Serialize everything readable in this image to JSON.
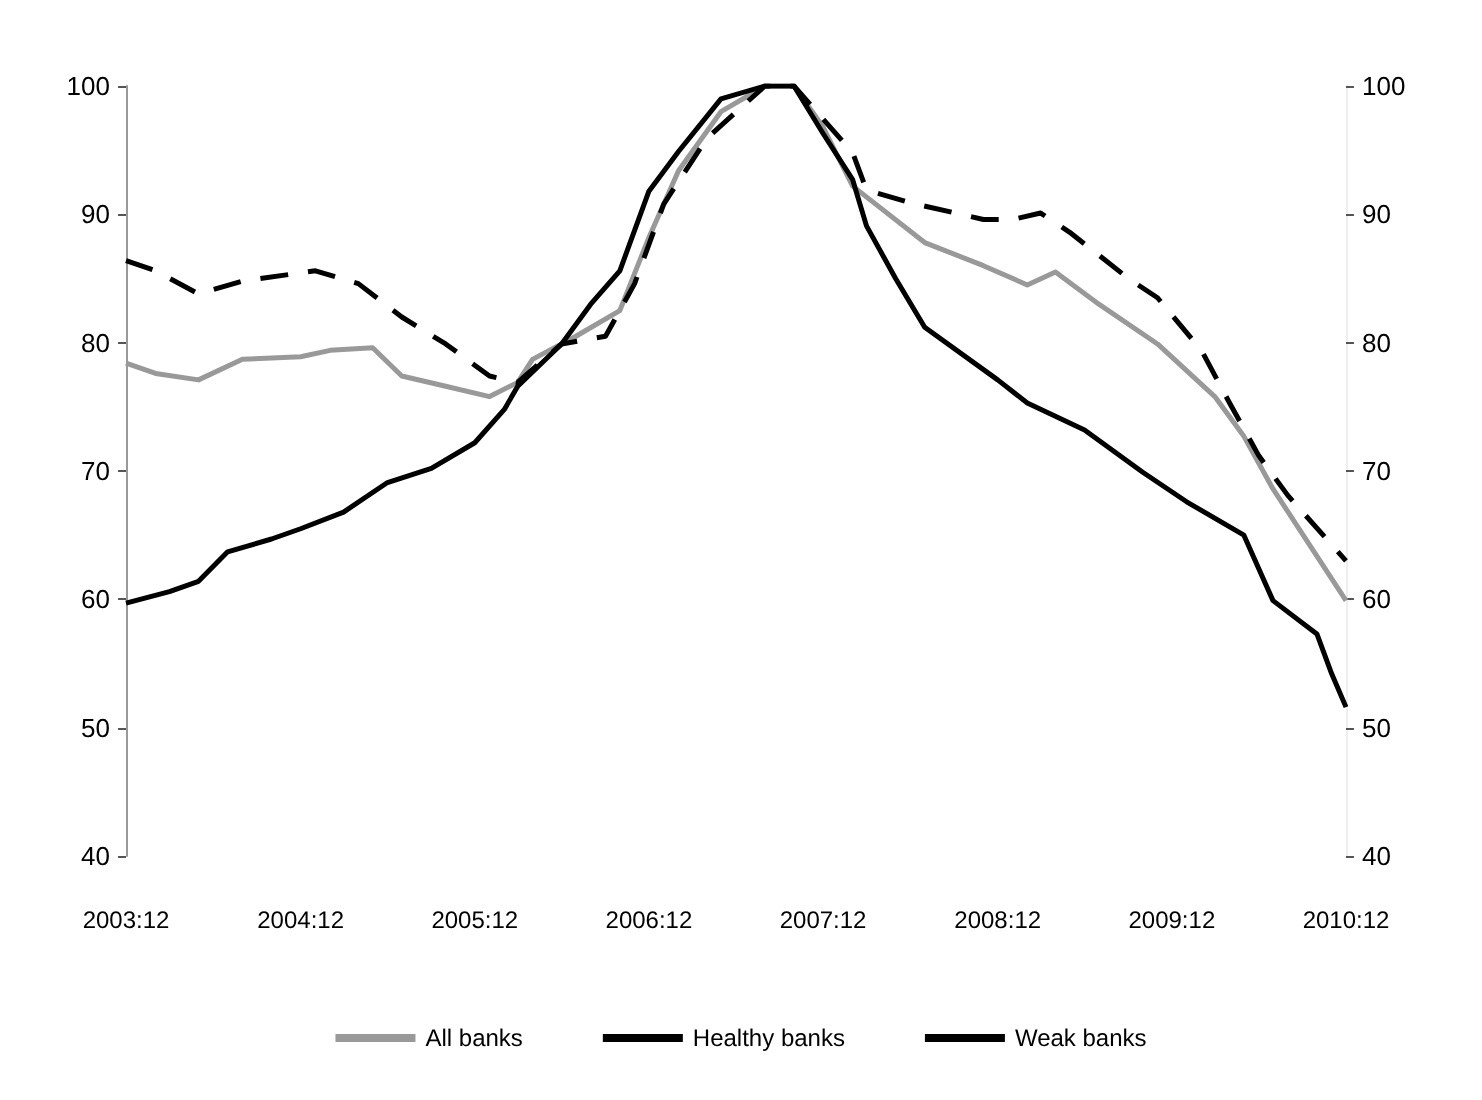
{
  "chart_data": {
    "type": "line",
    "legend": "bottom",
    "grid": false,
    "marker": "none",
    "xlim": [
      "2003-12",
      "2010-12"
    ],
    "xticks": [
      {
        "value": "2003-12",
        "label": "2003:12"
      },
      {
        "value": "2004-12",
        "label": "2004:12"
      },
      {
        "value": "2005-12",
        "label": "2005:12"
      },
      {
        "value": "2006-12",
        "label": "2006:12"
      },
      {
        "value": "2007-12",
        "label": "2007:12"
      },
      {
        "value": "2008-12",
        "label": "2008:12"
      },
      {
        "value": "2009-12",
        "label": "2009:12"
      },
      {
        "value": "2010-12",
        "label": "2010:12"
      }
    ],
    "ylim": [
      40,
      100
    ],
    "yticks": [
      40,
      50,
      60,
      70,
      80,
      90,
      100
    ],
    "y2lim": [
      40,
      100
    ],
    "y2ticks": [
      40,
      50,
      60,
      70,
      80,
      90,
      100
    ],
    "series": [
      {
        "name": "All banks",
        "color": "#999999",
        "line_style": "solid",
        "x": [
          "2003-12",
          "2004-02",
          "2004-05",
          "2004-08",
          "2004-12",
          "2005-02",
          "2005-05",
          "2005-07",
          "2005-10",
          "2006-01",
          "2006-03",
          "2006-04",
          "2006-07",
          "2006-10",
          "2006-12",
          "2007-02",
          "2007-05",
          "2007-08",
          "2007-10",
          "2007-12",
          "2008-02",
          "2008-07",
          "2008-11",
          "2009-02",
          "2009-04",
          "2009-07",
          "2009-11",
          "2010-03",
          "2010-05",
          "2010-07",
          "2010-12"
        ],
        "values": [
          78.4,
          77.6,
          77.1,
          78.7,
          78.9,
          79.4,
          79.6,
          77.4,
          76.6,
          75.8,
          76.9,
          78.7,
          80.5,
          82.5,
          88.2,
          93.4,
          98,
          100,
          100,
          96.8,
          92.2,
          87.8,
          86,
          84.5,
          85.5,
          83,
          79.9,
          75.8,
          72.7,
          68.6,
          59.9
        ]
      },
      {
        "name": "Healthy banks",
        "color": "#000000",
        "line_style": "dashed",
        "x": [
          "2003-12",
          "2004-02",
          "2004-05",
          "2004-08",
          "2005-01",
          "2005-04",
          "2005-07",
          "2005-10",
          "2006-01",
          "2006-03",
          "2006-06",
          "2006-09",
          "2006-11",
          "2007-01",
          "2007-04",
          "2007-08",
          "2007-10",
          "2008-02",
          "2008-03",
          "2008-06",
          "2008-11",
          "2009-01",
          "2009-03",
          "2009-05",
          "2009-09",
          "2009-11",
          "2010-02",
          "2010-04",
          "2010-06",
          "2010-08",
          "2010-12"
        ],
        "values": [
          86.4,
          85.6,
          83.8,
          84.8,
          85.6,
          84.6,
          82,
          79.9,
          77.4,
          76.9,
          79.9,
          80.5,
          84.6,
          90.8,
          95.9,
          100,
          100,
          94.8,
          91.9,
          90.9,
          89.6,
          89.6,
          90.1,
          88.6,
          85,
          83.5,
          79.4,
          75.3,
          71.2,
          68.1,
          63
        ]
      },
      {
        "name": "Weak banks",
        "color": "#000000",
        "line_style": "solid",
        "x": [
          "2003-12",
          "2004-03",
          "2004-05",
          "2004-07",
          "2004-10",
          "2004-12",
          "2005-03",
          "2005-06",
          "2005-09",
          "2005-12",
          "2006-02",
          "2006-03",
          "2006-06",
          "2006-08",
          "2006-10",
          "2006-12",
          "2007-02",
          "2007-05",
          "2007-08",
          "2007-10",
          "2007-12",
          "2008-02",
          "2008-03",
          "2008-05",
          "2008-07",
          "2008-12",
          "2009-02",
          "2009-06",
          "2009-10",
          "2010-01",
          "2010-05",
          "2010-07",
          "2010-10",
          "2010-11",
          "2010-12"
        ],
        "values": [
          59.7,
          60.6,
          61.4,
          63.7,
          64.7,
          65.5,
          66.8,
          69.1,
          70.2,
          72.2,
          74.8,
          76.6,
          79.9,
          83,
          85.6,
          91.8,
          94.9,
          99,
          100,
          100,
          96.3,
          92.7,
          89.1,
          85,
          81.2,
          77.1,
          75.3,
          73.2,
          69.9,
          67.6,
          65,
          59.9,
          57.3,
          54.2,
          51.6
        ]
      }
    ]
  }
}
